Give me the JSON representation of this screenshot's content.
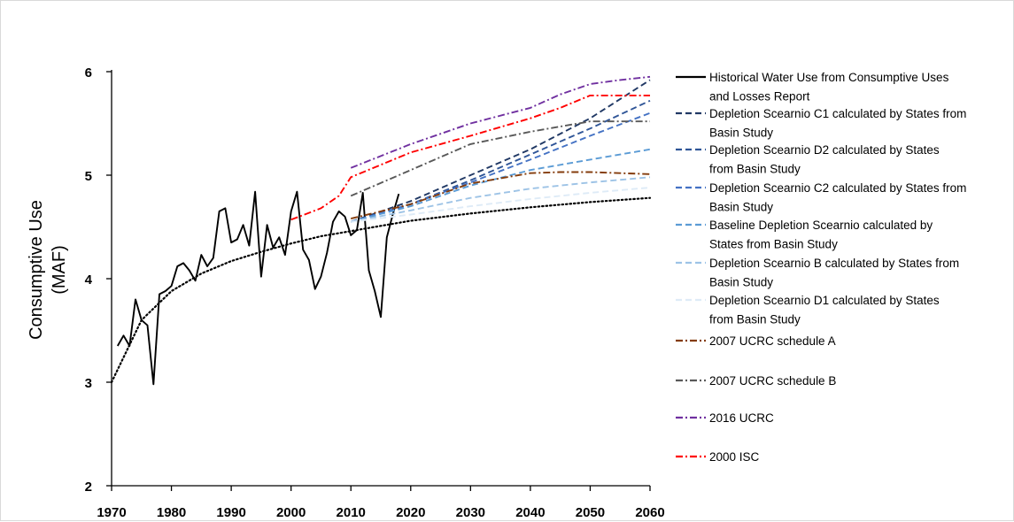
{
  "chart_data": {
    "type": "line",
    "title": "",
    "xlabel": "",
    "ylabel_lines": [
      "Consumptive Use",
      "(MAF)"
    ],
    "xlim": [
      1970,
      2060
    ],
    "ylim": [
      2,
      6
    ],
    "x_ticks": [
      1970,
      1980,
      1990,
      2000,
      2010,
      2020,
      2030,
      2040,
      2050,
      2060
    ],
    "y_ticks": [
      2,
      3,
      4,
      5,
      6
    ],
    "grid": false,
    "legend_position": "right",
    "series": [
      {
        "name_lines": [
          "Historical Water Use from Consumptive Uses",
          "and Losses Report"
        ],
        "color": "#000000",
        "dash": "solid",
        "x": [
          1971,
          1972,
          1973,
          1974,
          1975,
          1976,
          1977,
          1978,
          1979,
          1980,
          1981,
          1982,
          1983,
          1984,
          1985,
          1986,
          1987,
          1988,
          1989,
          1990,
          1991,
          1992,
          1993,
          1994,
          1995,
          1996,
          1997,
          1998,
          1999,
          2000,
          2001,
          2002,
          2003,
          2004,
          2005,
          2006,
          2007,
          2008,
          2009,
          2010,
          2011,
          2012,
          2013,
          2014,
          2015,
          2016,
          2017,
          2018
        ],
        "y": [
          3.35,
          3.45,
          3.35,
          3.8,
          3.6,
          3.55,
          2.98,
          3.85,
          3.88,
          3.93,
          4.12,
          4.15,
          4.08,
          3.98,
          4.23,
          4.12,
          4.2,
          4.65,
          4.68,
          4.35,
          4.38,
          4.52,
          4.32,
          4.84,
          4.02,
          4.52,
          4.3,
          4.4,
          4.23,
          4.65,
          4.84,
          4.28,
          4.18,
          3.9,
          4.02,
          4.25,
          4.55,
          4.65,
          4.6,
          4.42,
          4.47,
          4.83,
          4.08,
          3.88,
          3.63,
          4.4,
          4.62,
          4.82
        ]
      },
      {
        "name_lines": [
          "Depletion Scearnio C1 calculated by States from",
          "Basin Study"
        ],
        "color": "#203864",
        "dash": "dash",
        "x": [
          2010,
          2020,
          2030,
          2040,
          2050,
          2060
        ],
        "y": [
          4.55,
          4.75,
          5.0,
          5.25,
          5.55,
          5.92
        ]
      },
      {
        "name_lines": [
          "Depletion Scearnio D2 calculated by States",
          "from Basin Study"
        ],
        "color": "#2f5597",
        "dash": "dash",
        "x": [
          2010,
          2020,
          2030,
          2040,
          2050,
          2060
        ],
        "y": [
          4.55,
          4.72,
          4.95,
          5.2,
          5.45,
          5.72
        ]
      },
      {
        "name_lines": [
          "Depletion Scearnio C2 calculated by States from",
          "Basin Study"
        ],
        "color": "#4472c4",
        "dash": "dash",
        "x": [
          2010,
          2020,
          2030,
          2040,
          2050,
          2060
        ],
        "y": [
          4.55,
          4.72,
          4.93,
          5.15,
          5.38,
          5.6
        ]
      },
      {
        "name_lines": [
          "Baseline Depletion Scearnio calculated by",
          "States from Basin Study"
        ],
        "color": "#5b9bd5",
        "dash": "dash",
        "x": [
          2010,
          2020,
          2030,
          2040,
          2050,
          2060
        ],
        "y": [
          4.55,
          4.7,
          4.9,
          5.05,
          5.15,
          5.25
        ]
      },
      {
        "name_lines": [
          "Depletion Scearnio B calculated by States from",
          "Basin Study"
        ],
        "color": "#9dc3e6",
        "dash": "dash",
        "x": [
          2010,
          2020,
          2030,
          2040,
          2050,
          2060
        ],
        "y": [
          4.55,
          4.66,
          4.78,
          4.87,
          4.93,
          4.98
        ]
      },
      {
        "name_lines": [
          "Depletion Scearnio D1 calculated by States",
          "from Basin Study"
        ],
        "color": "#deebf7",
        "dash": "dash",
        "x": [
          2010,
          2020,
          2030,
          2040,
          2050,
          2060
        ],
        "y": [
          4.55,
          4.62,
          4.7,
          4.77,
          4.83,
          4.88
        ]
      },
      {
        "name_lines": [
          "2007 UCRC schedule A"
        ],
        "color": "#843c0c",
        "dash": "dashdot",
        "x": [
          2010,
          2020,
          2030,
          2040,
          2045,
          2050,
          2055,
          2060
        ],
        "y": [
          4.58,
          4.72,
          4.92,
          5.02,
          5.03,
          5.03,
          5.02,
          5.01
        ]
      },
      {
        "name_lines": [
          "2007 UCRC schedule B"
        ],
        "color": "#595959",
        "dash": "dashdot",
        "x": [
          2010,
          2020,
          2030,
          2040,
          2050,
          2055,
          2060
        ],
        "y": [
          4.8,
          5.05,
          5.3,
          5.42,
          5.52,
          5.52,
          5.52
        ]
      },
      {
        "name_lines": [
          "2016 UCRC"
        ],
        "color": "#7030a0",
        "dash": "dashdot",
        "x": [
          2010,
          2020,
          2030,
          2040,
          2045,
          2050,
          2055,
          2060
        ],
        "y": [
          5.07,
          5.3,
          5.5,
          5.65,
          5.78,
          5.88,
          5.92,
          5.95
        ]
      },
      {
        "name_lines": [
          "2000 ISC"
        ],
        "color": "#ff0000",
        "dash": "dashdot",
        "x": [
          2000,
          2005,
          2008,
          2010,
          2020,
          2030,
          2040,
          2045,
          2050,
          2060
        ],
        "y": [
          4.57,
          4.68,
          4.8,
          4.98,
          5.22,
          5.38,
          5.55,
          5.65,
          5.77,
          5.77
        ]
      },
      {
        "name_lines": [],
        "trendline": true,
        "color": "#000000",
        "dash": "dot",
        "x": [
          1970,
          1975,
          1980,
          1985,
          1990,
          1995,
          2000,
          2005,
          2010,
          2015,
          2020,
          2030,
          2040,
          2050,
          2060
        ],
        "y": [
          3.0,
          3.6,
          3.88,
          4.05,
          4.17,
          4.26,
          4.34,
          4.41,
          4.46,
          4.51,
          4.56,
          4.63,
          4.69,
          4.74,
          4.78
        ]
      }
    ]
  }
}
